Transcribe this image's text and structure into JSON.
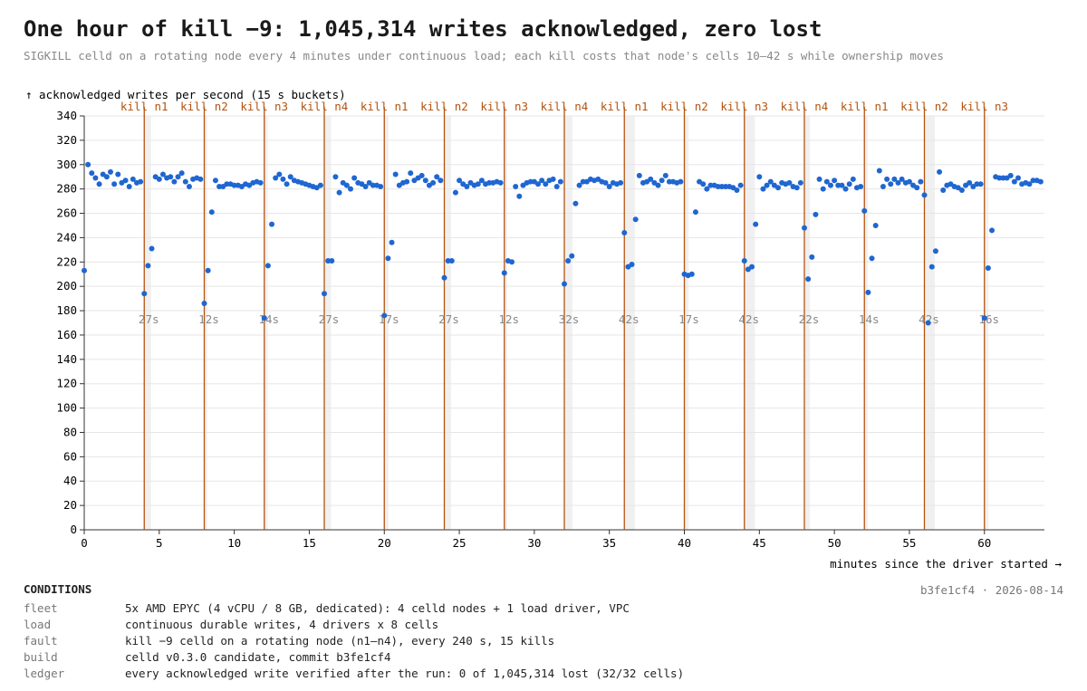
{
  "chart_data": {
    "type": "scatter",
    "title": "One hour of kill −9: 1,045,314 writes acknowledged, zero lost",
    "subtitle": "SIGKILL celld on a rotating node every 4 minutes under continuous load; each kill costs that node's cells 10–42 s while ownership moves",
    "ylabel": "↑ acknowledged writes per second (15 s buckets)",
    "xlabel": "minutes since the driver started →",
    "color": "#1f66d1",
    "kill_color": "#b5530f",
    "grid": true,
    "xlim": [
      0,
      64
    ],
    "xticks": [
      0,
      5,
      10,
      15,
      20,
      25,
      30,
      35,
      40,
      45,
      50,
      55,
      60
    ],
    "ylim": [
      0,
      340
    ],
    "yticks": [
      0,
      20,
      40,
      60,
      80,
      100,
      120,
      140,
      160,
      180,
      200,
      220,
      240,
      260,
      280,
      300,
      320,
      340
    ],
    "kills": [
      {
        "x": 4,
        "label": "kill n1",
        "recovery": {
          "value": 27,
          "label": "27s"
        }
      },
      {
        "x": 8,
        "label": "kill n2",
        "recovery": {
          "value": 12,
          "label": "12s"
        }
      },
      {
        "x": 12,
        "label": "kill n3",
        "recovery": {
          "value": 14,
          "label": "14s"
        }
      },
      {
        "x": 16,
        "label": "kill n4",
        "recovery": {
          "value": 27,
          "label": "27s"
        }
      },
      {
        "x": 20,
        "label": "kill n1",
        "recovery": {
          "value": 17,
          "label": "17s"
        }
      },
      {
        "x": 24,
        "label": "kill n2",
        "recovery": {
          "value": 27,
          "label": "27s"
        }
      },
      {
        "x": 28,
        "label": "kill n3",
        "recovery": {
          "value": 12,
          "label": "12s"
        }
      },
      {
        "x": 32,
        "label": "kill n4",
        "recovery": {
          "value": 32,
          "label": "32s"
        }
      },
      {
        "x": 36,
        "label": "kill n1",
        "recovery": {
          "value": 42,
          "label": "42s"
        }
      },
      {
        "x": 40,
        "label": "kill n2",
        "recovery": {
          "value": 17,
          "label": "17s"
        }
      },
      {
        "x": 44,
        "label": "kill n3",
        "recovery": {
          "value": 42,
          "label": "42s"
        }
      },
      {
        "x": 48,
        "label": "kill n4",
        "recovery": {
          "value": 22,
          "label": "22s"
        }
      },
      {
        "x": 52,
        "label": "kill n1",
        "recovery": {
          "value": 14,
          "label": "14s"
        }
      },
      {
        "x": 56,
        "label": "kill n2",
        "recovery": {
          "value": 42,
          "label": "42s"
        }
      },
      {
        "x": 60,
        "label": "kill n3",
        "recovery": {
          "value": 16,
          "label": "16s"
        }
      }
    ],
    "x": [
      0,
      0.25,
      0.5,
      0.75,
      1,
      1.25,
      1.5,
      1.75,
      2,
      2.25,
      2.5,
      2.75,
      3,
      3.25,
      3.5,
      3.75,
      4,
      4.25,
      4.5,
      4.75,
      5,
      5.25,
      5.5,
      5.75,
      6,
      6.25,
      6.5,
      6.75,
      7,
      7.25,
      7.5,
      7.75,
      8,
      8.25,
      8.5,
      8.75,
      9,
      9.25,
      9.5,
      9.75,
      10,
      10.25,
      10.5,
      10.75,
      11,
      11.25,
      11.5,
      11.75,
      12,
      12.25,
      12.5,
      12.75,
      13,
      13.25,
      13.5,
      13.75,
      14,
      14.25,
      14.5,
      14.75,
      15,
      15.25,
      15.5,
      15.75,
      16,
      16.25,
      16.5,
      16.75,
      17,
      17.25,
      17.5,
      17.75,
      18,
      18.25,
      18.5,
      18.75,
      19,
      19.25,
      19.5,
      19.75,
      20,
      20.25,
      20.5,
      20.75,
      21,
      21.25,
      21.5,
      21.75,
      22,
      22.25,
      22.5,
      22.75,
      23,
      23.25,
      23.5,
      23.75,
      24,
      24.25,
      24.5,
      24.75,
      25,
      25.25,
      25.5,
      25.75,
      26,
      26.25,
      26.5,
      26.75,
      27,
      27.25,
      27.5,
      27.75,
      28,
      28.25,
      28.5,
      28.75,
      29,
      29.25,
      29.5,
      29.75,
      30,
      30.25,
      30.5,
      30.75,
      31,
      31.25,
      31.5,
      31.75,
      32,
      32.25,
      32.5,
      32.75,
      33,
      33.25,
      33.5,
      33.75,
      34,
      34.25,
      34.5,
      34.75,
      35,
      35.25,
      35.5,
      35.75,
      36,
      36.25,
      36.5,
      36.75,
      37,
      37.25,
      37.5,
      37.75,
      38,
      38.25,
      38.5,
      38.75,
      39,
      39.25,
      39.5,
      39.75,
      40,
      40.25,
      40.5,
      40.75,
      41,
      41.25,
      41.5,
      41.75,
      42,
      42.25,
      42.5,
      42.75,
      43,
      43.25,
      43.5,
      43.75,
      44,
      44.25,
      44.5,
      44.75,
      45,
      45.25,
      45.5,
      45.75,
      46,
      46.25,
      46.5,
      46.75,
      47,
      47.25,
      47.5,
      47.75,
      48,
      48.25,
      48.5,
      48.75,
      49,
      49.25,
      49.5,
      49.75,
      50,
      50.25,
      50.5,
      50.75,
      51,
      51.25,
      51.5,
      51.75,
      52,
      52.25,
      52.5,
      52.75,
      53,
      53.25,
      53.5,
      53.75,
      54,
      54.25,
      54.5,
      54.75,
      55,
      55.25,
      55.5,
      55.75,
      56,
      56.25,
      56.5,
      56.75,
      57,
      57.25,
      57.5,
      57.75,
      58,
      58.25,
      58.5,
      58.75,
      59,
      59.25,
      59.5,
      59.75,
      60,
      60.25,
      60.5,
      60.75,
      61,
      61.25,
      61.5,
      61.75,
      62,
      62.25,
      62.5,
      62.75,
      63,
      63.25,
      63.5,
      63.75
    ],
    "values": [
      213,
      300,
      293,
      289,
      284,
      292,
      290,
      294,
      284,
      292,
      285,
      287,
      282,
      288,
      285,
      286,
      194,
      217,
      231,
      290,
      288,
      292,
      289,
      290,
      286,
      290,
      293,
      286,
      282,
      288,
      289,
      288,
      186,
      213,
      261,
      287,
      282,
      282,
      284,
      284,
      283,
      283,
      282,
      284,
      283,
      285,
      286,
      285,
      174,
      217,
      251,
      289,
      292,
      288,
      284,
      290,
      287,
      286,
      285,
      284,
      283,
      282,
      281,
      283,
      194,
      221,
      221,
      290,
      277,
      285,
      283,
      280,
      289,
      285,
      284,
      282,
      285,
      283,
      283,
      282,
      176,
      223,
      236,
      292,
      283,
      285,
      286,
      293,
      287,
      289,
      291,
      287,
      283,
      285,
      290,
      287,
      207,
      221,
      221,
      277,
      287,
      284,
      282,
      285,
      283,
      284,
      287,
      284,
      285,
      285,
      286,
      285,
      211,
      221,
      220,
      282,
      274,
      283,
      285,
      286,
      286,
      284,
      287,
      284,
      287,
      288,
      282,
      286,
      202,
      221,
      225,
      268,
      283,
      286,
      286,
      288,
      287,
      288,
      286,
      285,
      282,
      285,
      284,
      285,
      244,
      216,
      218,
      255,
      291,
      285,
      286,
      288,
      285,
      283,
      287,
      291,
      286,
      286,
      285,
      286,
      210,
      209,
      210,
      261,
      286,
      284,
      280,
      283,
      283,
      282,
      282,
      282,
      282,
      281,
      279,
      283,
      221,
      214,
      216,
      251,
      290,
      280,
      283,
      286,
      283,
      281,
      285,
      284,
      285,
      282,
      281,
      285,
      248,
      206,
      224,
      259,
      288,
      280,
      286,
      283,
      287,
      283,
      283,
      280,
      284,
      288,
      281,
      282,
      262,
      195,
      223,
      250,
      295,
      282,
      288,
      284,
      288,
      285,
      288,
      285,
      286,
      283,
      281,
      286,
      275,
      170,
      216,
      229,
      294,
      279,
      283,
      284,
      282,
      281,
      279,
      283,
      285,
      282,
      284,
      284,
      174,
      215,
      246,
      290,
      289,
      289,
      289,
      291,
      286,
      289,
      284,
      285,
      284,
      287,
      287,
      286
    ]
  },
  "conditions": {
    "title": "CONDITIONS",
    "rows": [
      [
        "fleet",
        "5x AMD EPYC (4 vCPU / 8 GB, dedicated): 4 celld nodes + 1 load driver, VPC"
      ],
      [
        "load",
        "continuous durable writes, 4 drivers x 8 cells"
      ],
      [
        "fault",
        "kill −9 celld on a rotating node (n1–n4), every 240 s, 15 kills"
      ],
      [
        "build",
        "celld v0.3.0 candidate, commit b3fe1cf4"
      ],
      [
        "ledger",
        "every acknowledged write verified after the run: 0 of 1,045,314 lost (32/32 cells)"
      ]
    ]
  },
  "footer": "b3fe1cf4 · 2026-08-14"
}
